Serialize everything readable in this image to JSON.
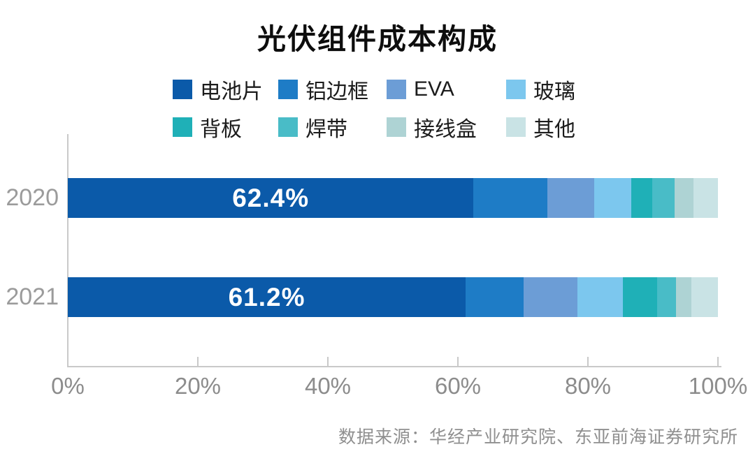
{
  "chart_data": {
    "type": "bar",
    "orientation": "horizontal-stacked",
    "title": "光伏组件成本构成",
    "categories": [
      "2020",
      "2021"
    ],
    "series": [
      {
        "name": "电池片",
        "color": "#0b5aa9",
        "values": [
          62.4,
          61.2
        ]
      },
      {
        "name": "铝边框",
        "color": "#1e7cc6",
        "values": [
          11.4,
          8.9
        ]
      },
      {
        "name": "EVA",
        "color": "#6c9dd6",
        "values": [
          7.2,
          8.3
        ]
      },
      {
        "name": "玻璃",
        "color": "#7cc7ee",
        "values": [
          5.7,
          7.0
        ]
      },
      {
        "name": "背板",
        "color": "#1fb0b7",
        "values": [
          3.2,
          5.2
        ]
      },
      {
        "name": "焊带",
        "color": "#49bcc7",
        "values": [
          3.4,
          2.9
        ]
      },
      {
        "name": "接线盒",
        "color": "#aed3d4",
        "values": [
          2.9,
          2.4
        ]
      },
      {
        "name": "其他",
        "color": "#c9e3e5",
        "values": [
          3.8,
          4.1
        ]
      }
    ],
    "bar_labels": [
      "62.4%",
      "61.2%"
    ],
    "x_ticks": [
      "0%",
      "20%",
      "40%",
      "60%",
      "80%",
      "100%"
    ],
    "xlim": [
      0,
      100
    ],
    "grid": false,
    "legend_position": "top",
    "axis_color": "#c9c9c9",
    "label_color": "#8c8c8c",
    "source": "数据来源：华经产业研究院、东亚前海证券研究所"
  }
}
